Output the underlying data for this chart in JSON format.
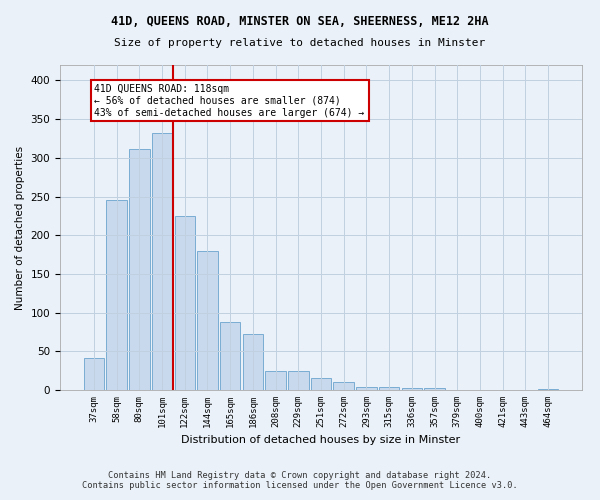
{
  "title1": "41D, QUEENS ROAD, MINSTER ON SEA, SHEERNESS, ME12 2HA",
  "title2": "Size of property relative to detached houses in Minster",
  "xlabel": "Distribution of detached houses by size in Minster",
  "ylabel": "Number of detached properties",
  "categories": [
    "37sqm",
    "58sqm",
    "80sqm",
    "101sqm",
    "122sqm",
    "144sqm",
    "165sqm",
    "186sqm",
    "208sqm",
    "229sqm",
    "251sqm",
    "272sqm",
    "293sqm",
    "315sqm",
    "336sqm",
    "357sqm",
    "379sqm",
    "400sqm",
    "421sqm",
    "443sqm",
    "464sqm"
  ],
  "values": [
    42,
    245,
    311,
    332,
    225,
    180,
    88,
    72,
    25,
    25,
    16,
    10,
    4,
    4,
    3,
    2,
    0,
    0,
    0,
    0,
    1
  ],
  "bar_color": "#c8d9ee",
  "bar_edge_color": "#7aadd4",
  "vline_x": 3.5,
  "vline_color": "#cc0000",
  "annotation_line1": "41D QUEENS ROAD: 118sqm",
  "annotation_line2": "← 56% of detached houses are smaller (874)",
  "annotation_line3": "43% of semi-detached houses are larger (674) →",
  "annotation_box_color": "#ffffff",
  "annotation_box_edge": "#cc0000",
  "grid_color": "#c0d0e0",
  "background_color": "#eaf1f8",
  "plot_background": "#eaf1f8",
  "footer": "Contains HM Land Registry data © Crown copyright and database right 2024.\nContains public sector information licensed under the Open Government Licence v3.0.",
  "ylim": [
    0,
    420
  ],
  "yticks": [
    0,
    50,
    100,
    150,
    200,
    250,
    300,
    350,
    400
  ]
}
